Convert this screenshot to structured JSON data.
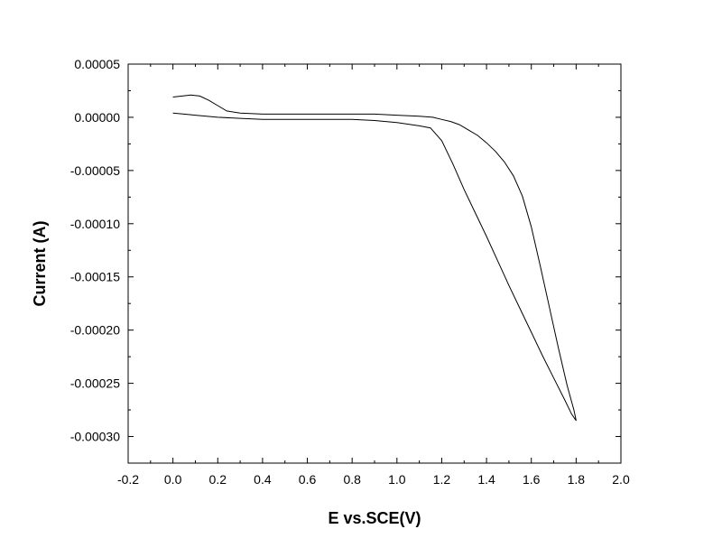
{
  "chart_data": {
    "type": "line",
    "title": "",
    "xlabel": "E vs.SCE(V)",
    "ylabel": "Current (A)",
    "xlim": [
      -0.2,
      2.0
    ],
    "ylim": [
      -0.000325,
      5e-05
    ],
    "x_ticks": [
      "-0.2",
      "0.0",
      "0.2",
      "0.4",
      "0.6",
      "0.8",
      "1.0",
      "1.2",
      "1.4",
      "1.6",
      "1.8",
      "2.0"
    ],
    "y_ticks": [
      "0.00005",
      "0.00000",
      "-0.00005",
      "-0.00010",
      "-0.00015",
      "-0.00020",
      "-0.00025",
      "-0.00030"
    ],
    "grid": false,
    "legend": "none",
    "line_color": "#000000",
    "series": [
      {
        "x": [
          0.0,
          0.05,
          0.1,
          0.15,
          0.2,
          0.3,
          0.4,
          0.6,
          0.8,
          0.9,
          1.0,
          1.1,
          1.15,
          1.2,
          1.25,
          1.3,
          1.35,
          1.4,
          1.45,
          1.5,
          1.55,
          1.6,
          1.65,
          1.7,
          1.75,
          1.78,
          1.8,
          1.79,
          1.76,
          1.72,
          1.68,
          1.64,
          1.6,
          1.56,
          1.52,
          1.48,
          1.44,
          1.4,
          1.36,
          1.32,
          1.28,
          1.24,
          1.2,
          1.16,
          1.1,
          1.0,
          0.9,
          0.8,
          0.6,
          0.4,
          0.3,
          0.24,
          0.2,
          0.16,
          0.12,
          0.08,
          0.04,
          0.0
        ],
        "y": [
          4e-06,
          3e-06,
          2e-06,
          1e-06,
          0.0,
          -1e-06,
          -2e-06,
          -2e-06,
          -2e-06,
          -3e-06,
          -5e-06,
          -8e-06,
          -1e-05,
          -2.2e-05,
          -4.4e-05,
          -6.8e-05,
          -9e-05,
          -0.000112,
          -0.000135,
          -0.000158,
          -0.00018,
          -0.000202,
          -0.000224,
          -0.000245,
          -0.000266,
          -0.000279,
          -0.000285,
          -0.000275,
          -0.000252,
          -0.000216,
          -0.000178,
          -0.00014,
          -0.000103,
          -7.4e-05,
          -5.5e-05,
          -4.2e-05,
          -3.2e-05,
          -2.4e-05,
          -1.7e-05,
          -1.2e-05,
          -7e-06,
          -4e-06,
          -2e-06,
          0.0,
          1e-06,
          2e-06,
          3e-06,
          3e-06,
          3e-06,
          3e-06,
          4e-06,
          6e-06,
          1.1e-05,
          1.6e-05,
          2e-05,
          2.1e-05,
          2e-05,
          1.9e-05
        ]
      }
    ]
  }
}
